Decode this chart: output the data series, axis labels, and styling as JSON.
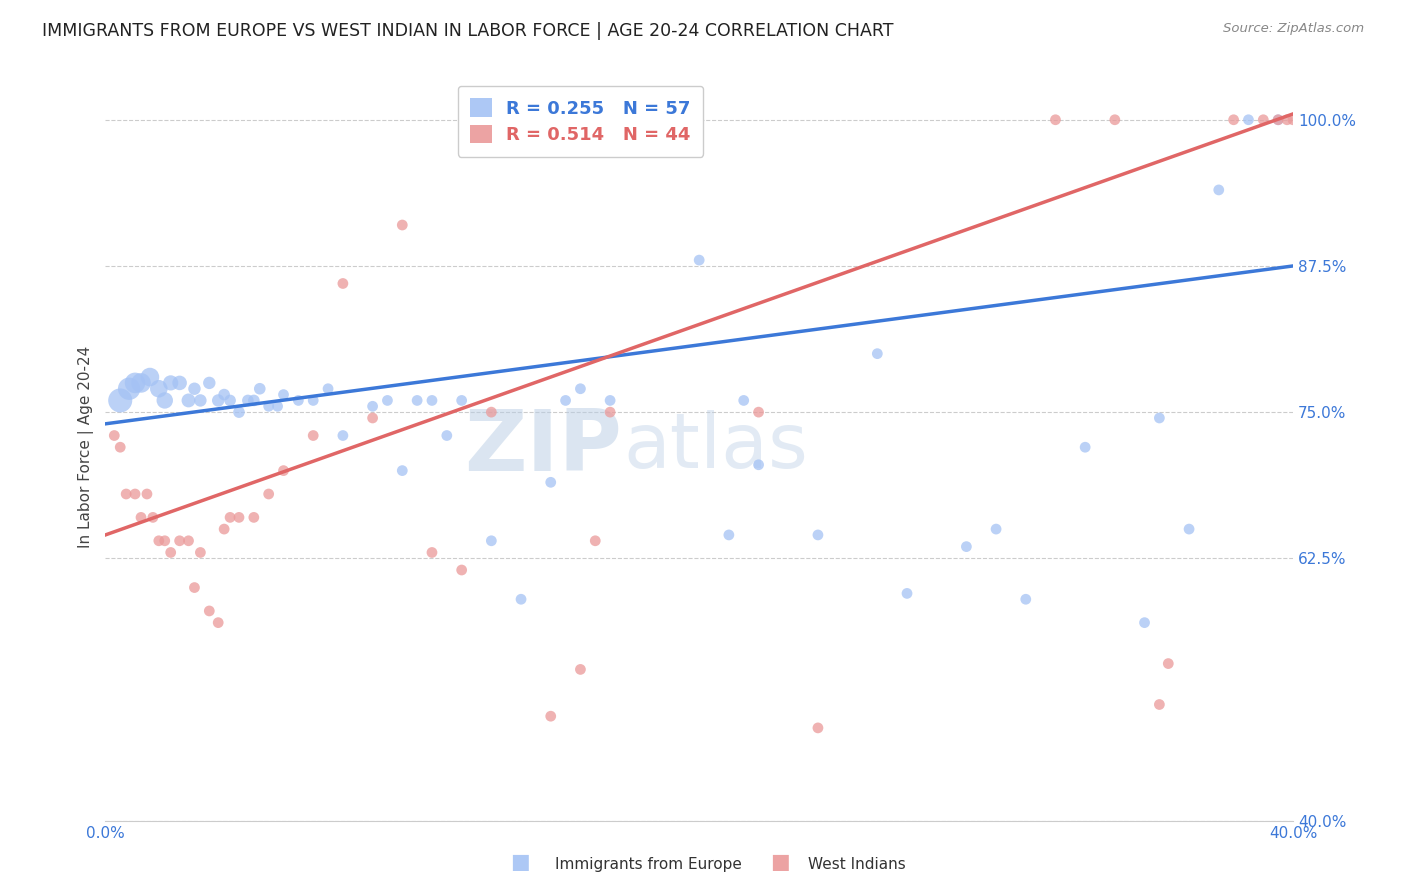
{
  "title": "IMMIGRANTS FROM EUROPE VS WEST INDIAN IN LABOR FORCE | AGE 20-24 CORRELATION CHART",
  "source": "Source: ZipAtlas.com",
  "ylabel": "In Labor Force | Age 20-24",
  "xlim": [
    0.0,
    0.4
  ],
  "ylim": [
    0.4,
    1.04
  ],
  "ytick_values": [
    0.4,
    0.625,
    0.75,
    0.875,
    1.0
  ],
  "ytick_labels": [
    "40.0%",
    "62.5%",
    "75.0%",
    "87.5%",
    "100.0%"
  ],
  "grid_color": "#cccccc",
  "background_color": "#ffffff",
  "blue_color": "#a4c2f4",
  "pink_color": "#ea9999",
  "blue_line_color": "#3c78d8",
  "pink_line_color": "#e06666",
  "blue_R": 0.255,
  "blue_N": 57,
  "pink_R": 0.514,
  "pink_N": 44,
  "legend_blue_label": "Immigrants from Europe",
  "legend_pink_label": "West Indians",
  "watermark_zip": "ZIP",
  "watermark_atlas": "atlas",
  "blue_line_x0": 0.0,
  "blue_line_y0": 0.74,
  "blue_line_x1": 0.4,
  "blue_line_y1": 0.875,
  "pink_line_x0": 0.0,
  "pink_line_y0": 0.645,
  "pink_line_x1": 0.4,
  "pink_line_y1": 1.005,
  "blue_scatter_x": [
    0.005,
    0.008,
    0.01,
    0.012,
    0.015,
    0.018,
    0.02,
    0.022,
    0.025,
    0.028,
    0.03,
    0.032,
    0.035,
    0.038,
    0.04,
    0.042,
    0.045,
    0.048,
    0.05,
    0.052,
    0.055,
    0.058,
    0.06,
    0.065,
    0.07,
    0.075,
    0.08,
    0.09,
    0.095,
    0.1,
    0.105,
    0.11,
    0.115,
    0.12,
    0.13,
    0.14,
    0.15,
    0.155,
    0.16,
    0.17,
    0.2,
    0.21,
    0.215,
    0.22,
    0.24,
    0.26,
    0.27,
    0.29,
    0.3,
    0.31,
    0.33,
    0.35,
    0.355,
    0.365,
    0.375,
    0.385,
    0.395
  ],
  "blue_scatter_y": [
    0.76,
    0.77,
    0.775,
    0.775,
    0.78,
    0.77,
    0.76,
    0.775,
    0.775,
    0.76,
    0.77,
    0.76,
    0.775,
    0.76,
    0.765,
    0.76,
    0.75,
    0.76,
    0.76,
    0.77,
    0.755,
    0.755,
    0.765,
    0.76,
    0.76,
    0.77,
    0.73,
    0.755,
    0.76,
    0.7,
    0.76,
    0.76,
    0.73,
    0.76,
    0.64,
    0.59,
    0.69,
    0.76,
    0.77,
    0.76,
    0.88,
    0.645,
    0.76,
    0.705,
    0.645,
    0.8,
    0.595,
    0.635,
    0.65,
    0.59,
    0.72,
    0.57,
    0.745,
    0.65,
    0.94,
    1.0,
    1.0
  ],
  "blue_scatter_size": [
    300,
    260,
    220,
    200,
    180,
    160,
    140,
    120,
    110,
    100,
    80,
    80,
    80,
    80,
    70,
    70,
    70,
    70,
    70,
    70,
    60,
    60,
    60,
    60,
    60,
    60,
    60,
    60,
    60,
    60,
    60,
    60,
    60,
    60,
    60,
    60,
    60,
    60,
    60,
    60,
    60,
    60,
    60,
    60,
    60,
    60,
    60,
    60,
    60,
    60,
    60,
    60,
    60,
    60,
    60,
    60,
    60
  ],
  "pink_scatter_x": [
    0.003,
    0.005,
    0.007,
    0.01,
    0.012,
    0.014,
    0.016,
    0.018,
    0.02,
    0.022,
    0.025,
    0.028,
    0.03,
    0.032,
    0.035,
    0.038,
    0.04,
    0.042,
    0.045,
    0.05,
    0.055,
    0.06,
    0.07,
    0.08,
    0.09,
    0.1,
    0.11,
    0.12,
    0.13,
    0.15,
    0.16,
    0.165,
    0.17,
    0.22,
    0.24,
    0.32,
    0.34,
    0.355,
    0.358,
    0.38,
    0.39,
    0.395,
    0.398,
    0.4
  ],
  "pink_scatter_y": [
    0.73,
    0.72,
    0.68,
    0.68,
    0.66,
    0.68,
    0.66,
    0.64,
    0.64,
    0.63,
    0.64,
    0.64,
    0.6,
    0.63,
    0.58,
    0.57,
    0.65,
    0.66,
    0.66,
    0.66,
    0.68,
    0.7,
    0.73,
    0.86,
    0.745,
    0.91,
    0.63,
    0.615,
    0.75,
    0.49,
    0.53,
    0.64,
    0.75,
    0.75,
    0.48,
    1.0,
    1.0,
    0.5,
    0.535,
    1.0,
    1.0,
    1.0,
    1.0,
    1.0
  ],
  "pink_scatter_size": [
    60,
    60,
    60,
    60,
    60,
    60,
    60,
    60,
    60,
    60,
    60,
    60,
    60,
    60,
    60,
    60,
    60,
    60,
    60,
    60,
    60,
    60,
    60,
    60,
    60,
    60,
    60,
    60,
    60,
    60,
    60,
    60,
    60,
    60,
    60,
    60,
    60,
    60,
    60,
    60,
    60,
    60,
    60,
    60
  ]
}
